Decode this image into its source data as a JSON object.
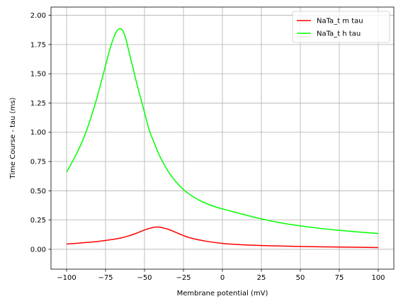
{
  "chart_data": {
    "type": "line",
    "title": "",
    "xlabel": "Membrane potential (mV)",
    "ylabel": "Time Course - tau (ms)",
    "xlim": [
      -110,
      110
    ],
    "ylim": [
      -0.17,
      2.07
    ],
    "xticks": [
      -100,
      -75,
      -50,
      -25,
      0,
      25,
      50,
      75,
      100
    ],
    "xtick_labels": [
      "−100",
      "−75",
      "−50",
      "−25",
      "0",
      "25",
      "50",
      "75",
      "100"
    ],
    "yticks": [
      0.0,
      0.25,
      0.5,
      0.75,
      1.0,
      1.25,
      1.5,
      1.75,
      2.0
    ],
    "ytick_labels": [
      "0.00",
      "0.25",
      "0.50",
      "0.75",
      "1.00",
      "1.25",
      "1.50",
      "1.75",
      "2.00"
    ],
    "grid": true,
    "legend_position": "top-right",
    "series": [
      {
        "name": "NaTa_t m tau",
        "color": "#ff0000",
        "x": [
          -100,
          -90,
          -80,
          -70,
          -65,
          -60,
          -55,
          -50,
          -45,
          -42,
          -40,
          -35,
          -30,
          -25,
          -20,
          -10,
          0,
          10,
          25,
          50,
          75,
          100
        ],
        "y": [
          0.045,
          0.055,
          0.067,
          0.085,
          0.097,
          0.115,
          0.138,
          0.165,
          0.185,
          0.19,
          0.188,
          0.172,
          0.145,
          0.117,
          0.095,
          0.068,
          0.05,
          0.04,
          0.032,
          0.024,
          0.019,
          0.015
        ]
      },
      {
        "name": "NaTa_t h tau",
        "color": "#00ff00",
        "x": [
          -100,
          -95,
          -90,
          -85,
          -80,
          -75,
          -72,
          -70,
          -68,
          -66,
          -64,
          -62,
          -60,
          -57,
          -55,
          -52,
          -50,
          -47,
          -45,
          -40,
          -35,
          -30,
          -25,
          -20,
          -15,
          -10,
          -5,
          0,
          10,
          20,
          25,
          30,
          40,
          50,
          60,
          70,
          80,
          90,
          100
        ],
        "y": [
          0.66,
          0.78,
          0.92,
          1.1,
          1.32,
          1.57,
          1.72,
          1.8,
          1.86,
          1.885,
          1.87,
          1.8,
          1.69,
          1.53,
          1.42,
          1.27,
          1.17,
          1.02,
          0.95,
          0.79,
          0.67,
          0.58,
          0.51,
          0.46,
          0.42,
          0.39,
          0.365,
          0.345,
          0.31,
          0.275,
          0.26,
          0.245,
          0.22,
          0.2,
          0.183,
          0.168,
          0.156,
          0.145,
          0.135
        ]
      }
    ]
  }
}
